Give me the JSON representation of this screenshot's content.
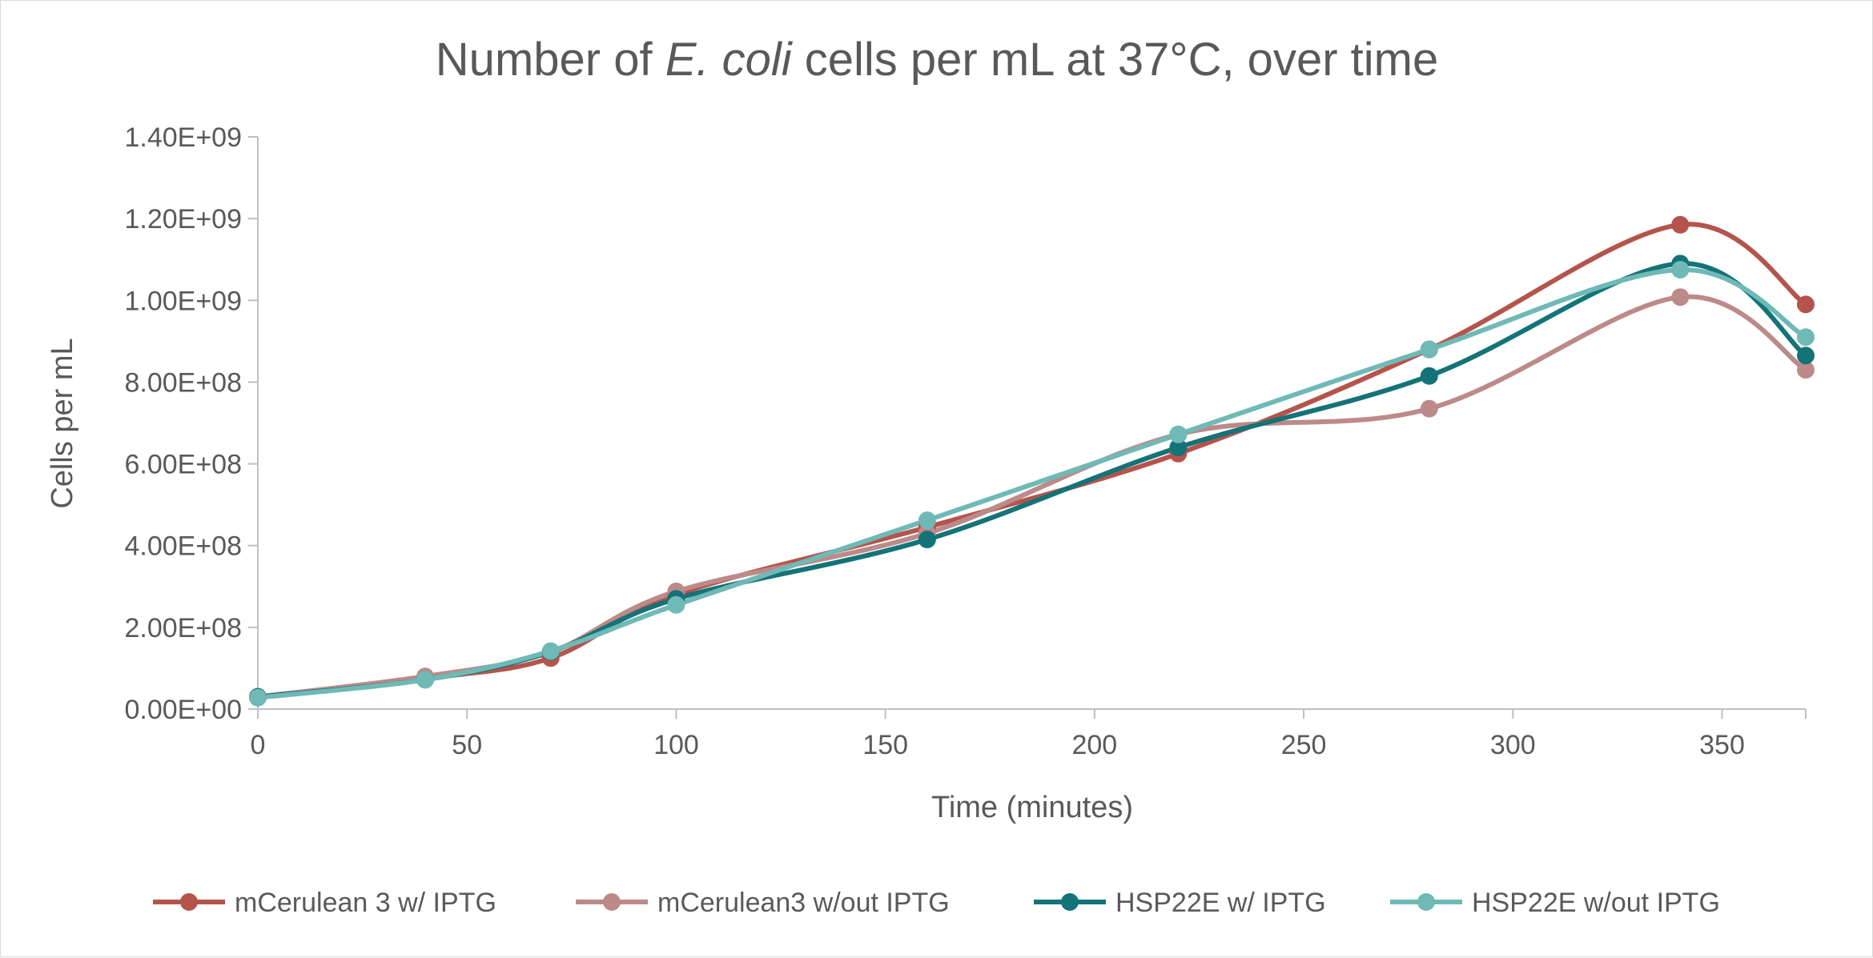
{
  "chart_data": {
    "type": "line",
    "title": "Number of E. coli cells per mL at 37°C, over time",
    "title_parts": {
      "before": "Number of ",
      "italic": "E. coli",
      "after": " cells per mL at 37°C, over time"
    },
    "xlabel": "Time (minutes)",
    "ylabel": "Cells per mL",
    "xlim": [
      0,
      370
    ],
    "ylim": [
      0,
      1400000000
    ],
    "x_ticks": [
      0,
      50,
      100,
      150,
      200,
      250,
      300,
      350
    ],
    "x_tick_labels": [
      "0",
      "50",
      "100",
      "150",
      "200",
      "250",
      "300",
      "350"
    ],
    "y_ticks": [
      0,
      200000000,
      400000000,
      600000000,
      800000000,
      1000000000,
      1200000000,
      1400000000
    ],
    "y_tick_labels": [
      "0.00E+00",
      "2.00E+08",
      "4.00E+08",
      "6.00E+08",
      "8.00E+08",
      "1.00E+09",
      "1.20E+09",
      "1.40E+09"
    ],
    "grid": false,
    "legend_position": "bottom",
    "x": [
      0,
      40,
      70,
      100,
      160,
      220,
      280,
      340,
      370
    ],
    "series": [
      {
        "name": "mCerulean 3 w/ IPTG",
        "color": "#b5544c",
        "values": [
          30000000,
          75000000,
          125000000,
          280000000,
          445000000,
          625000000,
          880000000,
          1185000000,
          990000000
        ]
      },
      {
        "name": "mCerulean3 w/out IPTG",
        "color": "#bc8a89",
        "values": [
          30000000,
          80000000,
          140000000,
          288000000,
          430000000,
          672000000,
          735000000,
          1008000000,
          830000000
        ]
      },
      {
        "name": "HSP22E w/ IPTG",
        "color": "#137378",
        "values": [
          30000000,
          72000000,
          140000000,
          270000000,
          415000000,
          640000000,
          815000000,
          1090000000,
          865000000
        ]
      },
      {
        "name": "HSP22E w/out IPTG",
        "color": "#6fb9b6",
        "values": [
          28000000,
          72000000,
          142000000,
          255000000,
          462000000,
          672000000,
          880000000,
          1075000000,
          910000000
        ]
      }
    ]
  }
}
